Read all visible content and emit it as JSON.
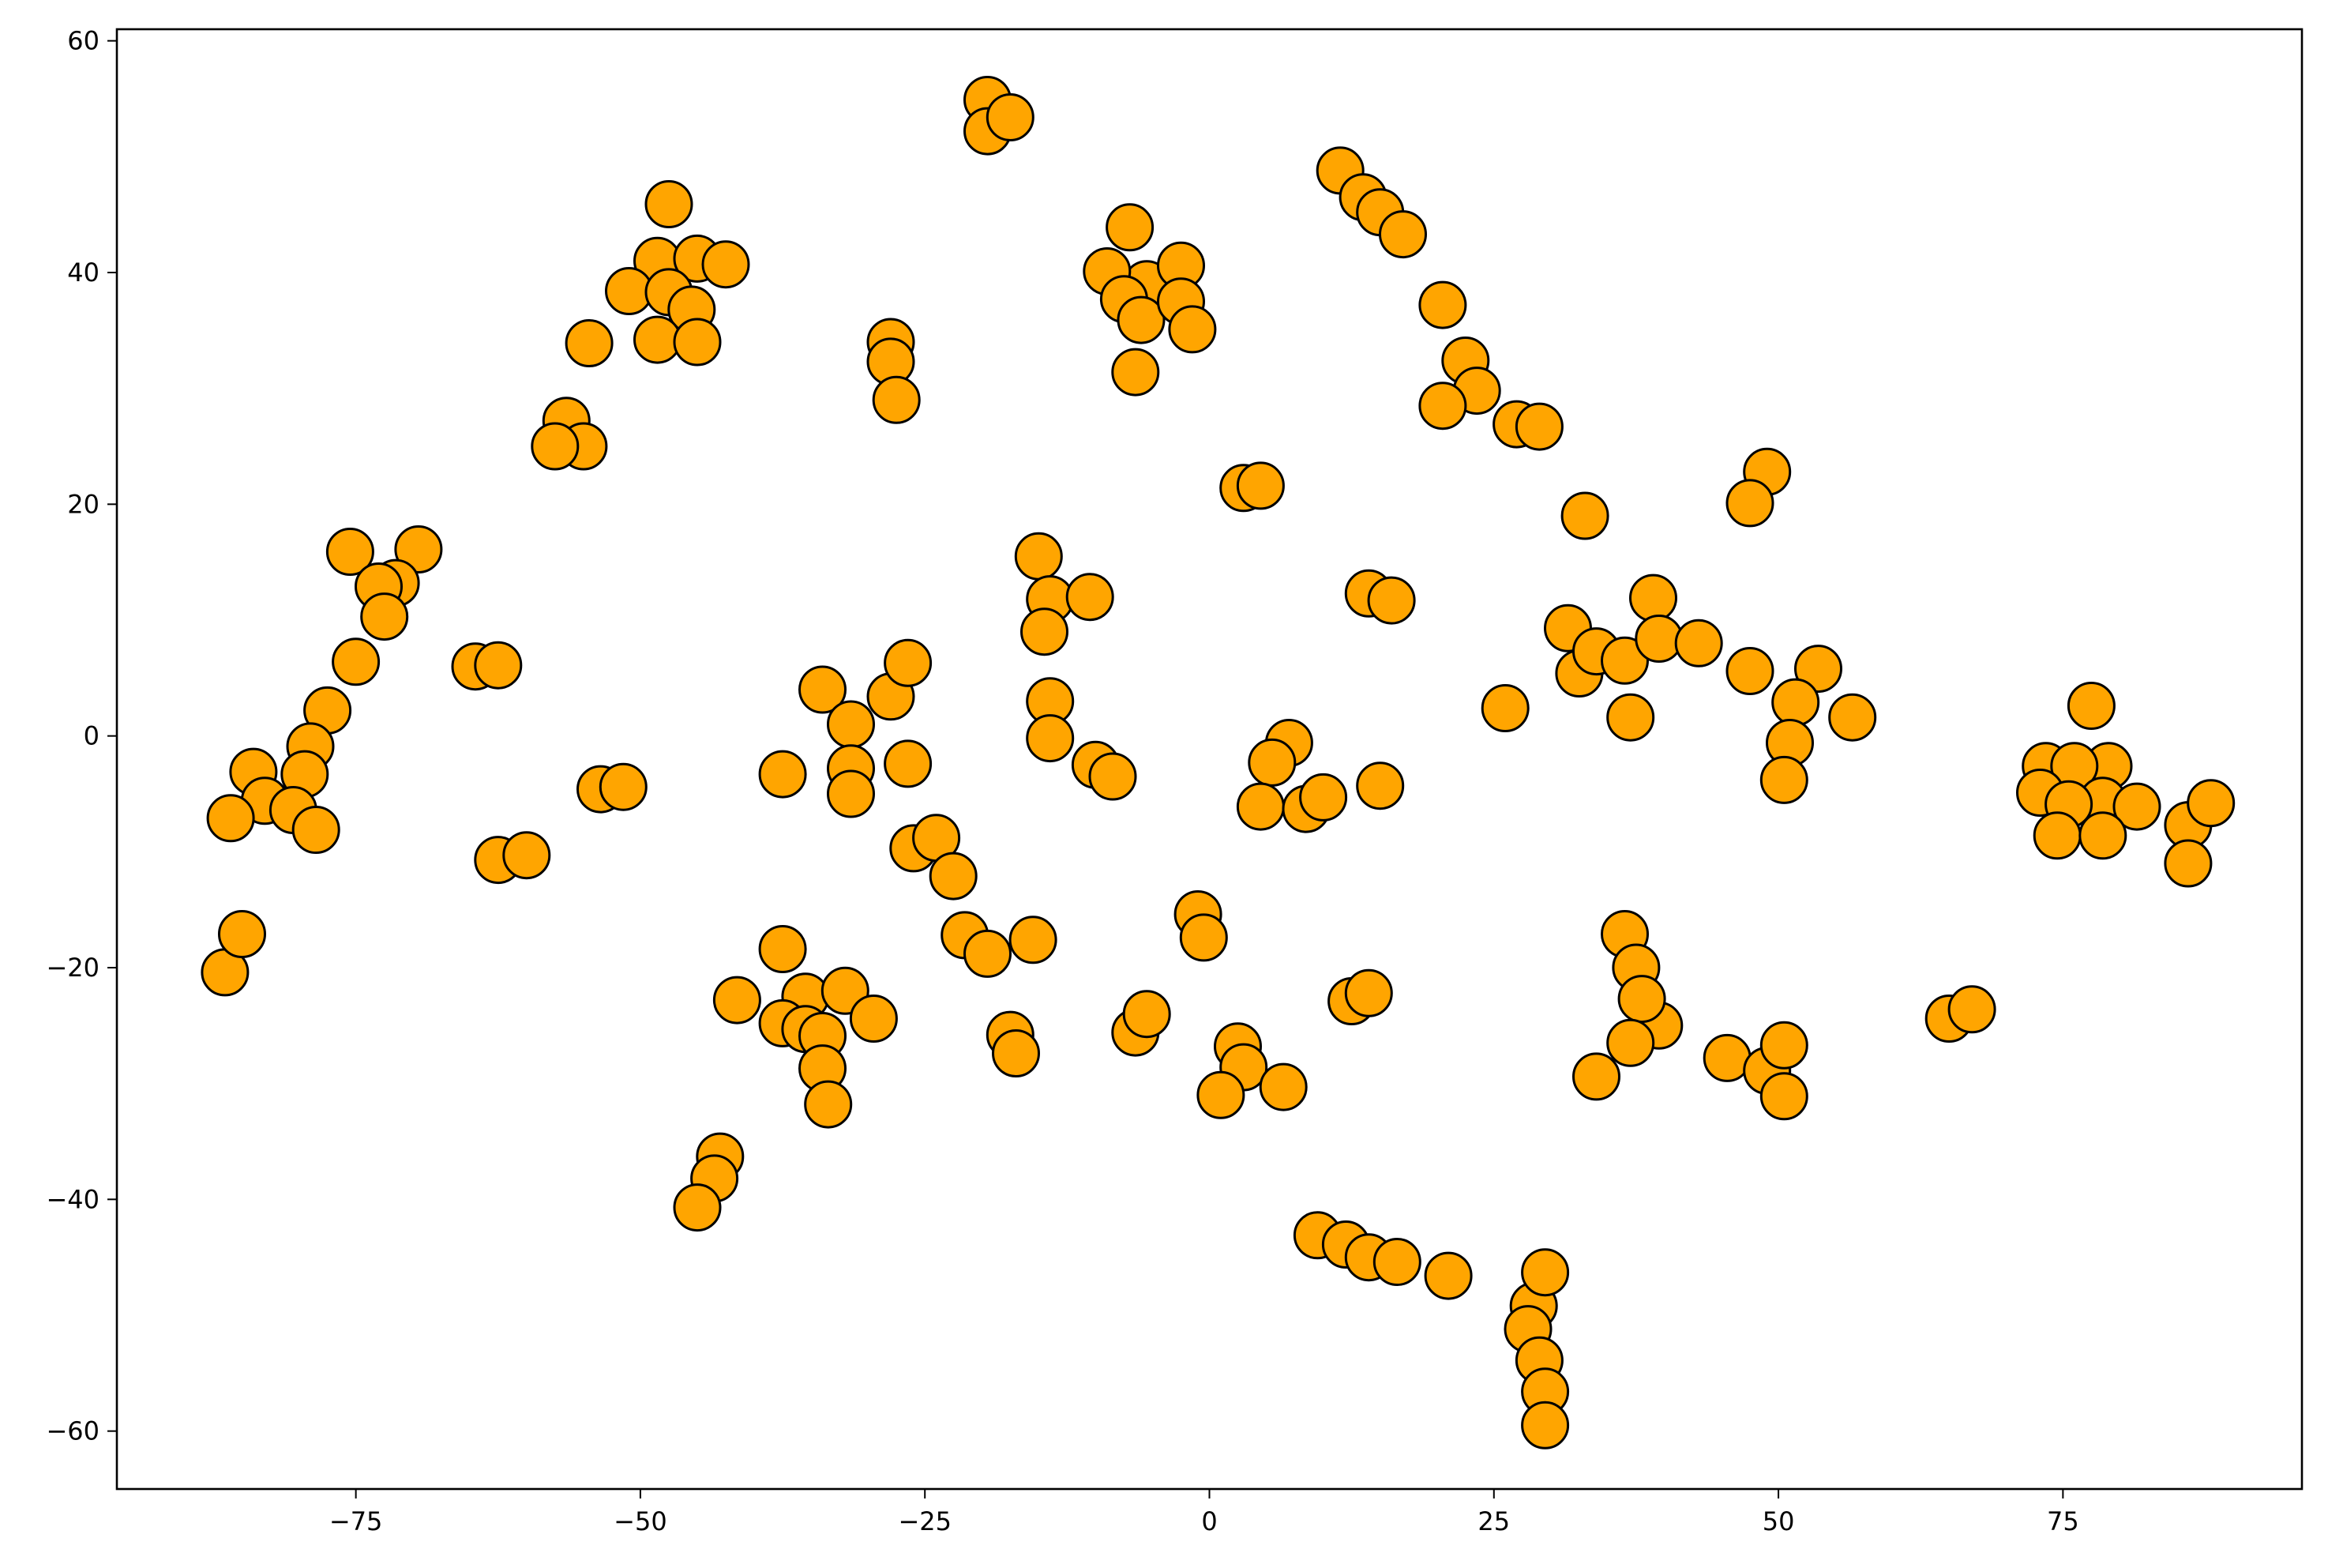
{
  "chart_data": {
    "type": "scatter",
    "title": "",
    "xlabel": "",
    "ylabel": "",
    "xlim": [
      -96,
      96
    ],
    "ylim": [
      -65,
      61
    ],
    "grid": false,
    "marker_color": "#ffa500",
    "marker_edge_color": "#000000",
    "x_ticks": [
      -75,
      -50,
      -25,
      0,
      25,
      50,
      75
    ],
    "x_tick_labels": [
      "−75",
      "−50",
      "−25",
      "0",
      "25",
      "50",
      "75"
    ],
    "y_ticks": [
      -60,
      -40,
      -20,
      0,
      20,
      40,
      60
    ],
    "y_tick_labels": [
      "−60",
      "−40",
      "−20",
      "0",
      "20",
      "40",
      "60"
    ],
    "points": [
      [
        -19.5,
        54.9
      ],
      [
        -19.5,
        52.2
      ],
      [
        -17.5,
        53.4
      ],
      [
        11.5,
        48.8
      ],
      [
        13.5,
        46.5
      ],
      [
        15.0,
        45.2
      ],
      [
        17.0,
        43.3
      ],
      [
        -47.5,
        45.9
      ],
      [
        -48.5,
        41.0
      ],
      [
        -45.0,
        41.2
      ],
      [
        -42.5,
        40.7
      ],
      [
        -51.0,
        38.4
      ],
      [
        -47.5,
        38.3
      ],
      [
        -45.5,
        36.8
      ],
      [
        -48.5,
        34.2
      ],
      [
        -45.0,
        34.0
      ],
      [
        -54.5,
        33.9
      ],
      [
        -56.5,
        27.2
      ],
      [
        -55.0,
        25.0
      ],
      [
        -57.5,
        25.0
      ],
      [
        -7.0,
        43.9
      ],
      [
        -5.5,
        39.0
      ],
      [
        -2.5,
        40.6
      ],
      [
        -9.0,
        40.1
      ],
      [
        -7.5,
        37.7
      ],
      [
        -6.0,
        35.9
      ],
      [
        -2.5,
        37.5
      ],
      [
        -1.5,
        35.1
      ],
      [
        -6.5,
        31.4
      ],
      [
        -28.0,
        34.0
      ],
      [
        -28.0,
        32.3
      ],
      [
        -27.5,
        29.0
      ],
      [
        20.5,
        37.2
      ],
      [
        22.5,
        32.4
      ],
      [
        23.5,
        29.8
      ],
      [
        20.5,
        28.5
      ],
      [
        27.0,
        26.9
      ],
      [
        29.0,
        26.7
      ],
      [
        3.0,
        21.4
      ],
      [
        4.5,
        21.6
      ],
      [
        49.0,
        22.8
      ],
      [
        47.5,
        20.1
      ],
      [
        33.0,
        19.0
      ],
      [
        -69.5,
        16.1
      ],
      [
        -75.5,
        15.9
      ],
      [
        -71.5,
        13.2
      ],
      [
        -73.0,
        12.9
      ],
      [
        -72.5,
        10.3
      ],
      [
        -75.0,
        6.4
      ],
      [
        -77.5,
        2.2
      ],
      [
        -79.0,
        -0.9
      ],
      [
        -79.5,
        -3.3
      ],
      [
        -84.0,
        -3.1
      ],
      [
        -83.0,
        -5.6
      ],
      [
        -80.5,
        -6.4
      ],
      [
        -78.5,
        -8.1
      ],
      [
        -86.0,
        -7.1
      ],
      [
        -64.5,
        6.0
      ],
      [
        -62.5,
        6.1
      ],
      [
        -62.5,
        -10.7
      ],
      [
        -60.0,
        -10.3
      ],
      [
        -53.5,
        -4.6
      ],
      [
        -51.5,
        -4.4
      ],
      [
        -34.0,
        4.0
      ],
      [
        -31.5,
        1.0
      ],
      [
        -31.5,
        -2.8
      ],
      [
        -37.5,
        -3.3
      ],
      [
        -31.5,
        -5.0
      ],
      [
        -28.0,
        3.4
      ],
      [
        -26.5,
        6.3
      ],
      [
        -26.5,
        -2.4
      ],
      [
        -26.0,
        -9.7
      ],
      [
        -24.0,
        -8.8
      ],
      [
        -22.5,
        -12.1
      ],
      [
        -15.0,
        15.5
      ],
      [
        -14.0,
        11.8
      ],
      [
        -14.5,
        9.0
      ],
      [
        -10.5,
        12.0
      ],
      [
        -14.0,
        3.0
      ],
      [
        -14.0,
        -0.2
      ],
      [
        -10.0,
        -2.5
      ],
      [
        -8.5,
        -3.5
      ],
      [
        14.0,
        12.3
      ],
      [
        16.0,
        11.7
      ],
      [
        31.5,
        9.3
      ],
      [
        32.5,
        5.4
      ],
      [
        34.0,
        7.3
      ],
      [
        36.5,
        6.5
      ],
      [
        37.0,
        1.6
      ],
      [
        39.0,
        11.9
      ],
      [
        39.5,
        8.4
      ],
      [
        43.0,
        8.0
      ],
      [
        47.5,
        5.6
      ],
      [
        53.5,
        5.8
      ],
      [
        51.5,
        2.9
      ],
      [
        56.5,
        1.6
      ],
      [
        51.0,
        -0.6
      ],
      [
        50.5,
        -3.8
      ],
      [
        26.0,
        2.4
      ],
      [
        7.0,
        -0.6
      ],
      [
        5.5,
        -2.3
      ],
      [
        4.5,
        -6.1
      ],
      [
        8.5,
        -6.3
      ],
      [
        10.0,
        -5.3
      ],
      [
        15.0,
        -4.3
      ],
      [
        77.5,
        2.6
      ],
      [
        73.5,
        -2.6
      ],
      [
        79.0,
        -2.6
      ],
      [
        76.0,
        -2.6
      ],
      [
        73.0,
        -4.9
      ],
      [
        78.5,
        -5.6
      ],
      [
        75.5,
        -5.9
      ],
      [
        81.5,
        -6.1
      ],
      [
        74.5,
        -8.6
      ],
      [
        78.5,
        -8.6
      ],
      [
        86.0,
        -7.7
      ],
      [
        88.0,
        -5.8
      ],
      [
        86.0,
        -11.0
      ],
      [
        -86.5,
        -20.4
      ],
      [
        -85.0,
        -17.1
      ],
      [
        -1.0,
        -15.4
      ],
      [
        -0.5,
        -17.4
      ],
      [
        -21.5,
        -17.2
      ],
      [
        -19.5,
        -18.8
      ],
      [
        -15.5,
        -17.6
      ],
      [
        -37.5,
        -18.4
      ],
      [
        -35.5,
        -22.5
      ],
      [
        -32.0,
        -22.0
      ],
      [
        -37.5,
        -24.8
      ],
      [
        -35.5,
        -25.3
      ],
      [
        -34.0,
        -25.9
      ],
      [
        -29.5,
        -24.4
      ],
      [
        -34.0,
        -28.7
      ],
      [
        -33.5,
        -31.8
      ],
      [
        -41.5,
        -22.8
      ],
      [
        -17.5,
        -25.8
      ],
      [
        -17.0,
        -27.4
      ],
      [
        -6.5,
        -25.6
      ],
      [
        -5.5,
        -24.0
      ],
      [
        12.5,
        -22.9
      ],
      [
        14.0,
        -22.2
      ],
      [
        36.5,
        -17.1
      ],
      [
        37.5,
        -20.0
      ],
      [
        39.5,
        -25.0
      ],
      [
        38.0,
        -22.7
      ],
      [
        37.0,
        -26.5
      ],
      [
        34.0,
        -29.4
      ],
      [
        45.5,
        -27.8
      ],
      [
        49.0,
        -28.9
      ],
      [
        50.5,
        -26.7
      ],
      [
        50.5,
        -31.1
      ],
      [
        65.0,
        -24.4
      ],
      [
        67.0,
        -23.6
      ],
      [
        2.5,
        -26.8
      ],
      [
        3.0,
        -28.6
      ],
      [
        1.0,
        -31.0
      ],
      [
        6.5,
        -30.3
      ],
      [
        -43.0,
        -36.3
      ],
      [
        -43.5,
        -38.2
      ],
      [
        -45.0,
        -40.7
      ],
      [
        9.5,
        -43.1
      ],
      [
        12.0,
        -43.9
      ],
      [
        14.0,
        -45.0
      ],
      [
        16.5,
        -45.4
      ],
      [
        21.0,
        -46.6
      ],
      [
        28.5,
        -49.2
      ],
      [
        28.0,
        -51.2
      ],
      [
        29.5,
        -46.3
      ],
      [
        29.0,
        -53.9
      ],
      [
        29.5,
        -56.6
      ],
      [
        29.5,
        -59.5
      ]
    ]
  }
}
